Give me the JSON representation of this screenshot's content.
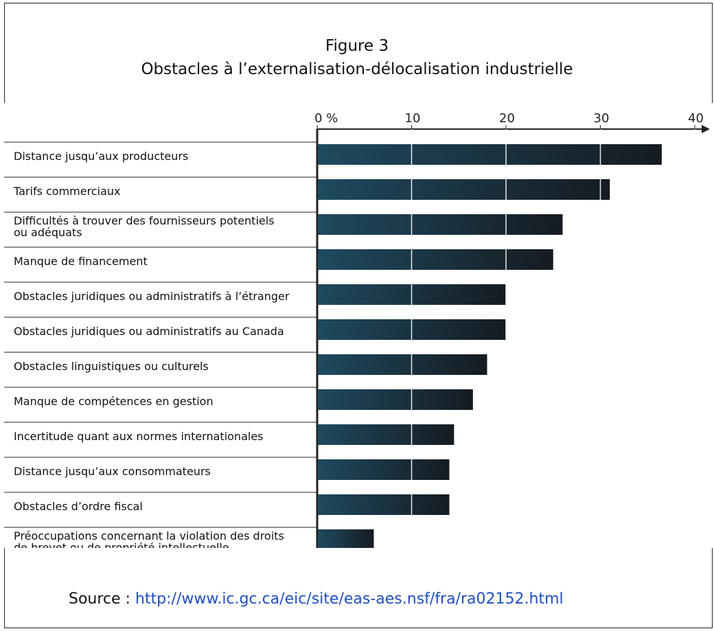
{
  "figure": {
    "number": "Figure 3",
    "title": "Obstacles à l’externalisation-délocalisation industrielle"
  },
  "source": {
    "label": "Source : ",
    "url": "http://www.ic.gc.ca/eic/site/eas-aes.nsf/fra/ra02152.html"
  },
  "colors": {
    "bar_dark": "#161b22",
    "bar_light": "#1e4a5f",
    "link": "#1f4fbf"
  },
  "chart_data": {
    "type": "bar",
    "orientation": "horizontal",
    "categories": [
      "Distance jusqu’aux producteurs",
      "Tarifs commerciaux",
      "Difficultés à trouver des fournisseurs potentiels ou adéquats",
      "Manque de financement",
      "Obstacles juridiques ou administratifs à l’étranger",
      "Obstacles juridiques ou administratifs au Canada",
      "Obstacles linguistiques ou culturels",
      "Manque de compétences en gestion",
      "Incertitude quant aux normes internationales",
      "Distance jusqu’aux consommateurs",
      "Obstacles d’ordre fiscal",
      "Préoccupations concernant la violation des droits de brevet ou de propriété intellectuelle"
    ],
    "label_lines": [
      [
        "Distance jusqu’aux producteurs"
      ],
      [
        "Tarifs commerciaux"
      ],
      [
        "Difficultés à trouver des fournisseurs potentiels",
        "ou adéquats"
      ],
      [
        "Manque de financement"
      ],
      [
        "Obstacles juridiques ou administratifs à l’étranger"
      ],
      [
        "Obstacles juridiques ou administratifs au Canada"
      ],
      [
        "Obstacles linguistiques ou culturels"
      ],
      [
        "Manque de compétences en gestion"
      ],
      [
        "Incertitude quant aux normes internationales"
      ],
      [
        "Distance jusqu’aux consommateurs"
      ],
      [
        "Obstacles d’ordre fiscal"
      ],
      [
        "Préoccupations concernant la violation des droits",
        "de brevet ou de propriété intellectuelle"
      ]
    ],
    "values": [
      36.5,
      31,
      26,
      25,
      20,
      20,
      18,
      16.5,
      14.5,
      14,
      14,
      6
    ],
    "ticks": [
      0,
      10,
      20,
      30,
      40
    ],
    "tick_labels": [
      "0 %",
      "10",
      "20",
      "30",
      "40"
    ],
    "xlim": [
      0,
      42
    ],
    "grid": true,
    "title": "",
    "xlabel": "",
    "ylabel": ""
  }
}
